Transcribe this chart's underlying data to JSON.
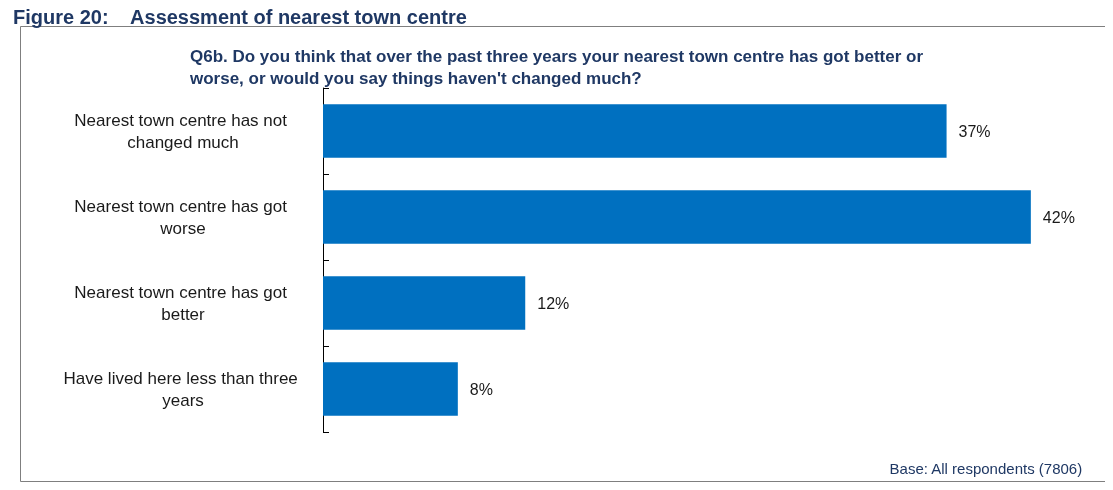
{
  "chart_data": {
    "type": "bar",
    "orientation": "horizontal",
    "title": "Figure 20:    Assessment of nearest town centre",
    "subtitle": "Q6b. Do you think that over the past three years your nearest town centre has got better or\nworse, or would you say things haven't changed much?",
    "categories": [
      "Nearest town centre has not changed much",
      "Nearest town centre has got worse",
      "Nearest town centre has got better",
      "Have lived here less than three years"
    ],
    "values": [
      37,
      42,
      12,
      8
    ],
    "value_labels": [
      "37%",
      "42%",
      "12%",
      "8%"
    ],
    "color": "#0070c0",
    "annotations": [
      "Base: All respondents (7806)"
    ]
  }
}
